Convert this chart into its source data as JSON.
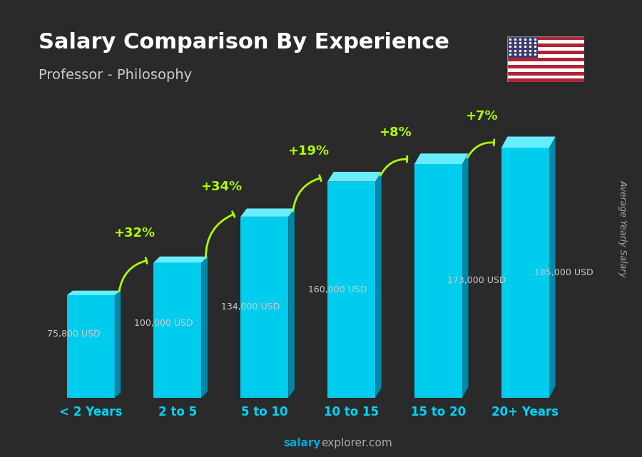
{
  "title": "Salary Comparison By Experience",
  "subtitle": "Professor - Philosophy",
  "categories": [
    "< 2 Years",
    "2 to 5",
    "5 to 10",
    "10 to 15",
    "15 to 20",
    "20+ Years"
  ],
  "values": [
    75800,
    100000,
    134000,
    160000,
    173000,
    185000
  ],
  "labels": [
    "75,800 USD",
    "100,000 USD",
    "134,000 USD",
    "160,000 USD",
    "173,000 USD",
    "185,000 USD"
  ],
  "pct_labels": [
    "+32%",
    "+34%",
    "+19%",
    "+8%",
    "+7%"
  ],
  "bar_color_top": "#00d4f5",
  "bar_color_mid": "#00aacc",
  "bar_color_side": "#007fa0",
  "bg_color": "#2a2a2a",
  "title_color": "#ffffff",
  "subtitle_color": "#dddddd",
  "label_color": "#cccccc",
  "pct_color": "#aaff00",
  "xlabel_color": "#00d4f5",
  "footer_color": "#aaaaaa",
  "footer_bold": "salary",
  "footer_normal": "explorer.com",
  "ylabel_text": "Average Yearly Salary",
  "ylim": [
    0,
    220000
  ]
}
